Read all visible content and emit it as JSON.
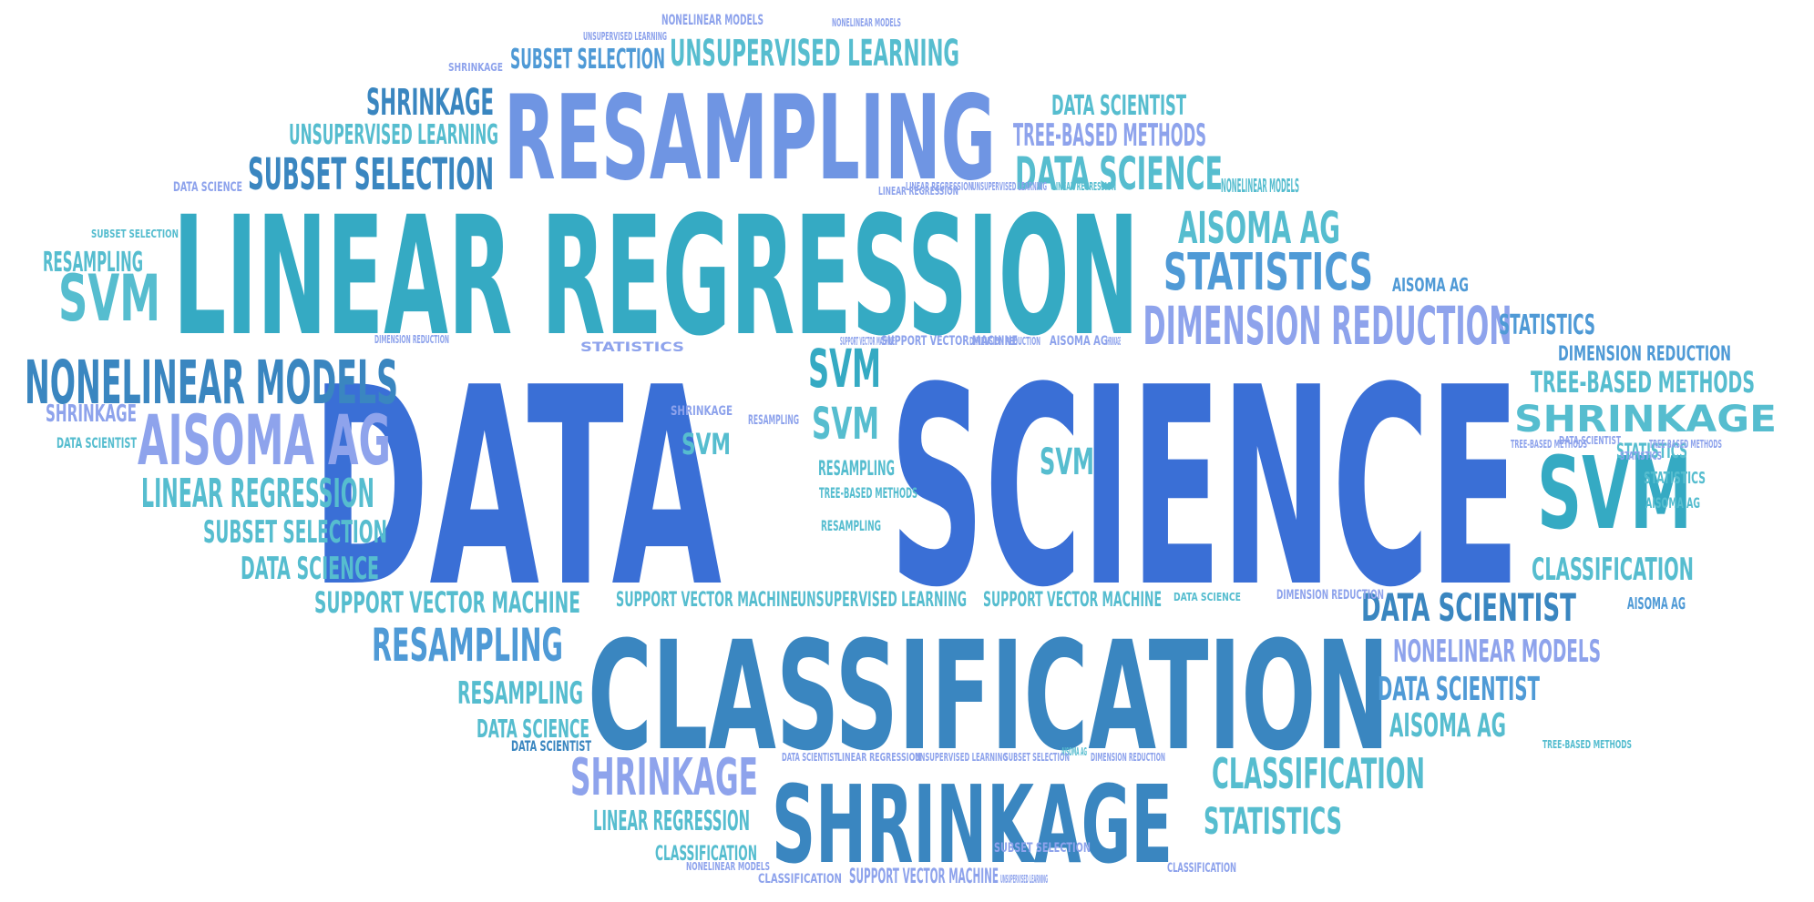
{
  "colors": {
    "royal": "#3a6fd6",
    "periwinkle": "#6f95e3",
    "lavender": "#8ea3ec",
    "teal": "#35aac3",
    "aqua": "#56bdcf",
    "steel": "#3a86c0",
    "sky": "#4f9ad6"
  },
  "words": [
    {
      "text": "DATA",
      "color": "royal"
    },
    {
      "text": "SCIENCE",
      "color": "royal"
    },
    {
      "text": "LINEAR REGRESSION",
      "color": "teal"
    },
    {
      "text": "CLASSIFICATION",
      "color": "steel"
    },
    {
      "text": "RESAMPLING",
      "color": "periwinkle"
    },
    {
      "text": "SHRINKAGE",
      "color": "steel"
    },
    {
      "text": "NONELINEAR MODELS",
      "color": "steel"
    },
    {
      "text": "AISOMA AG",
      "color": "lavender"
    },
    {
      "text": "DIMENSION REDUCTION",
      "color": "lavender"
    },
    {
      "text": "STATISTICS",
      "color": "sky"
    },
    {
      "text": "AISOMA AG",
      "color": "aqua"
    },
    {
      "text": "DATA SCIENCE",
      "color": "aqua"
    },
    {
      "text": "TREE-BASED METHODS",
      "color": "lavender"
    },
    {
      "text": "DATA SCIENTIST",
      "color": "aqua"
    },
    {
      "text": "SUBSET SELECTION",
      "color": "steel"
    },
    {
      "text": "UNSUPERVISED LEARNING",
      "color": "aqua"
    },
    {
      "text": "SHRINKAGE",
      "color": "steel"
    },
    {
      "text": "UNSUPERVISED LEARNING",
      "color": "aqua"
    },
    {
      "text": "SUBSET SELECTION",
      "color": "sky"
    },
    {
      "text": "SVM",
      "color": "aqua"
    },
    {
      "text": "RESAMPLING",
      "color": "aqua"
    },
    {
      "text": "SVM",
      "color": "teal"
    },
    {
      "text": "LINEAR REGRESSION",
      "color": "aqua"
    },
    {
      "text": "SUBSET SELECTION",
      "color": "aqua"
    },
    {
      "text": "DATA SCIENCE",
      "color": "aqua"
    },
    {
      "text": "SHRINKAGE",
      "color": "lavender"
    },
    {
      "text": "SUPPORT VECTOR MACHINE",
      "color": "aqua"
    },
    {
      "text": "RESAMPLING",
      "color": "sky"
    },
    {
      "text": "RESAMPLING",
      "color": "aqua"
    },
    {
      "text": "DATA SCIENCE",
      "color": "aqua"
    },
    {
      "text": "SHRINKAGE",
      "color": "lavender"
    },
    {
      "text": "LINEAR REGRESSION",
      "color": "aqua"
    },
    {
      "text": "CLASSIFICATION",
      "color": "aqua"
    },
    {
      "text": "SVM",
      "color": "teal"
    },
    {
      "text": "SVM",
      "color": "aqua"
    },
    {
      "text": "SVM",
      "color": "aqua"
    },
    {
      "text": "SVM",
      "color": "aqua"
    },
    {
      "text": "RESAMPLING",
      "color": "aqua"
    },
    {
      "text": "TREE-BASED METHODS",
      "color": "aqua"
    },
    {
      "text": "RESAMPLING",
      "color": "aqua"
    },
    {
      "text": "SUPPORT VECTOR MACHINE",
      "color": "aqua"
    },
    {
      "text": "UNSUPERVISED LEARNING",
      "color": "aqua"
    },
    {
      "text": "SUPPORT VECTOR MACHINE",
      "color": "aqua"
    },
    {
      "text": "DATA SCIENTIST",
      "color": "steel"
    },
    {
      "text": "NONELINEAR MODELS",
      "color": "lavender"
    },
    {
      "text": "DATA SCIENTIST",
      "color": "sky"
    },
    {
      "text": "AISOMA AG",
      "color": "aqua"
    },
    {
      "text": "CLASSIFICATION",
      "color": "aqua"
    },
    {
      "text": "STATISTICS",
      "color": "aqua"
    },
    {
      "text": "STATISTICS",
      "color": "sky"
    },
    {
      "text": "NONELINEAR MODELS",
      "color": "aqua"
    },
    {
      "text": "DIMENSION REDUCTION",
      "color": "sky"
    },
    {
      "text": "TREE-BASED METHODS",
      "color": "aqua"
    },
    {
      "text": "SHRINKAGE",
      "color": "aqua"
    },
    {
      "text": "STATISTICS",
      "color": "aqua"
    },
    {
      "text": "AISOMA AG",
      "color": "aqua"
    },
    {
      "text": "CLASSIFICATION",
      "color": "aqua"
    },
    {
      "text": "AISOMA AG",
      "color": "sky"
    },
    {
      "text": "AISOMA AG",
      "color": "sky"
    },
    {
      "text": "STATISTICS",
      "color": "aqua"
    },
    {
      "text": "STATISTICS",
      "color": "lavender"
    },
    {
      "text": "DATA SCIENTIST",
      "color": "aqua"
    },
    {
      "text": "TREE-BASED METHODS",
      "color": "aqua"
    },
    {
      "text": "LINEAR REGRESSION",
      "color": "aqua"
    },
    {
      "text": "NONELINEAR MODELS",
      "color": "lavender"
    },
    {
      "text": "NONELINEAR MODELS",
      "color": "lavender"
    },
    {
      "text": "UNSUPERVISED LEARNING",
      "color": "lavender"
    },
    {
      "text": "SHRINKAGE",
      "color": "lavender"
    },
    {
      "text": "DATA SCIENCE",
      "color": "lavender"
    },
    {
      "text": "SUBSET SELECTION",
      "color": "aqua"
    },
    {
      "text": "DATA SCIENTIST",
      "color": "steel"
    },
    {
      "text": "DIMENSION REDUCTION",
      "color": "lavender"
    },
    {
      "text": "UNSUPERVISED LEARNING",
      "color": "lavender"
    },
    {
      "text": "LINEAR REGRESSION",
      "color": "lavender"
    },
    {
      "text": "DIMENSION REDUCTION",
      "color": "lavender"
    },
    {
      "text": "SUPPORT VECTOR MACHINE",
      "color": "lavender"
    },
    {
      "text": "SUPPORT VECTOR MACHINE",
      "color": "lavender"
    },
    {
      "text": "AISOMA AG",
      "color": "lavender"
    },
    {
      "text": "SHRINKAGE",
      "color": "lavender"
    },
    {
      "text": "DATA SCIENCE",
      "color": "aqua"
    },
    {
      "text": "DIMENSION REDUCTION",
      "color": "lavender"
    },
    {
      "text": "AISOMA AG",
      "color": "aqua"
    },
    {
      "text": "DATA SCIENTIST",
      "color": "lavender"
    },
    {
      "text": "LINEAR REGRESSION",
      "color": "lavender"
    },
    {
      "text": "DATA SCIENTIST",
      "color": "lavender"
    },
    {
      "text": "UNSUPERVISED LEARNING",
      "color": "lavender"
    },
    {
      "text": "SUBSET SELECTION",
      "color": "lavender"
    },
    {
      "text": "DIMENSION REDUCTION",
      "color": "lavender"
    },
    {
      "text": "TREE-BASED METHODS",
      "color": "lavender"
    },
    {
      "text": "TREE-BASED METHODS",
      "color": "lavender"
    },
    {
      "text": "NONELINEAR MODELS",
      "color": "lavender"
    },
    {
      "text": "CLASSIFICATION",
      "color": "lavender"
    },
    {
      "text": "SUPPORT VECTOR MACHINE",
      "color": "lavender"
    },
    {
      "text": "UNSUPERVISED LEARNING",
      "color": "lavender"
    },
    {
      "text": "LINEAR REGRESSION",
      "color": "lavender"
    },
    {
      "text": "STATISTICS",
      "color": "lavender"
    },
    {
      "text": "SUBSET SELECTION",
      "color": "lavender"
    },
    {
      "text": "SHRINKAGE",
      "color": "lavender"
    },
    {
      "text": "RESAMPLING",
      "color": "lavender"
    },
    {
      "text": "CLASSIFICATION",
      "color": "lavender"
    }
  ]
}
